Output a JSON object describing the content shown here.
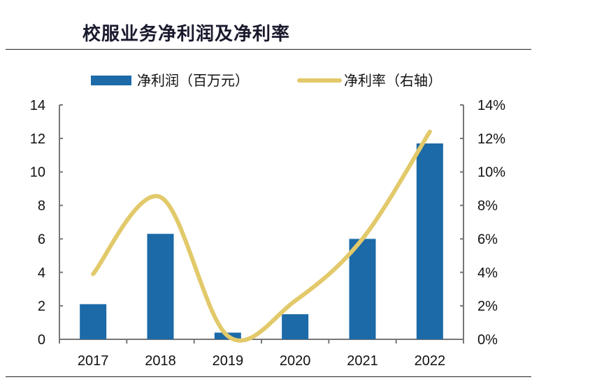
{
  "title": "校服业务净利润及净利率",
  "chart_data": {
    "type": "bar+line",
    "categories": [
      "2017",
      "2018",
      "2019",
      "2020",
      "2021",
      "2022"
    ],
    "series": [
      {
        "name": "净利润（百万元）",
        "type": "bar",
        "axis": "left",
        "color": "#1c6aa8",
        "values": [
          2.1,
          6.3,
          0.4,
          1.5,
          6.0,
          11.7
        ]
      },
      {
        "name": "净利率（右轴）",
        "type": "line",
        "axis": "right",
        "smooth": true,
        "color": "#e2c96a",
        "values": [
          3.9,
          8.5,
          0.2,
          2.3,
          6.0,
          12.4
        ]
      }
    ],
    "ylim": [
      0,
      14
    ],
    "yticks": [
      "0",
      "2",
      "4",
      "6",
      "8",
      "10",
      "12",
      "14"
    ],
    "y2lim": [
      0,
      14
    ],
    "y2ticks": [
      "0%",
      "2%",
      "4%",
      "6%",
      "8%",
      "10%",
      "12%",
      "14%"
    ],
    "legend": "top",
    "grid": false
  }
}
